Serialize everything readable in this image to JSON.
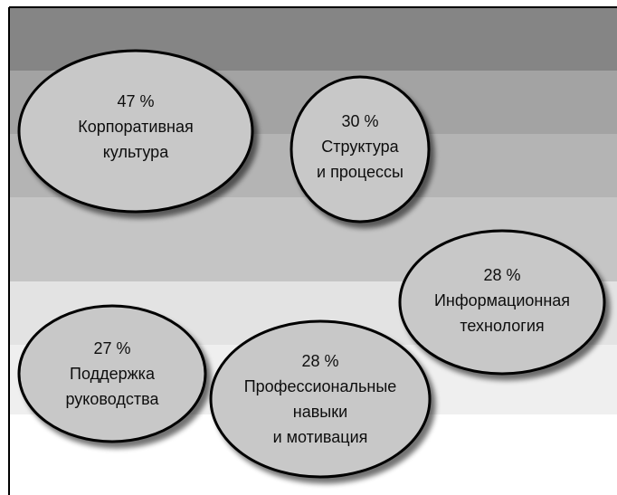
{
  "bubbles": [
    {
      "id": "corporate-culture",
      "percent": "47 %",
      "lines": [
        "Корпоративная",
        "культура"
      ]
    },
    {
      "id": "structure-processes",
      "percent": "30 %",
      "lines": [
        "Структура",
        "и процессы"
      ]
    },
    {
      "id": "information-technology",
      "percent": "28 %",
      "lines": [
        "Информационная",
        "технология"
      ]
    },
    {
      "id": "management-support",
      "percent": "27 %",
      "lines": [
        "Поддержка",
        "руководства"
      ]
    },
    {
      "id": "professional-skills",
      "percent": "28 %",
      "lines": [
        "Профессиональные",
        "навыки",
        "и мотивация"
      ]
    }
  ],
  "colors": {
    "bubble_fill": "#c8c8c8",
    "bubble_stroke": "#000000",
    "band_dark": "#858585",
    "band_mid1": "#a3a3a3",
    "band_mid2": "#b4b4b4",
    "band_light1": "#c5c5c5",
    "band_light2": "#e3e3e3",
    "band_light3": "#efefef",
    "frame": "#000000"
  }
}
